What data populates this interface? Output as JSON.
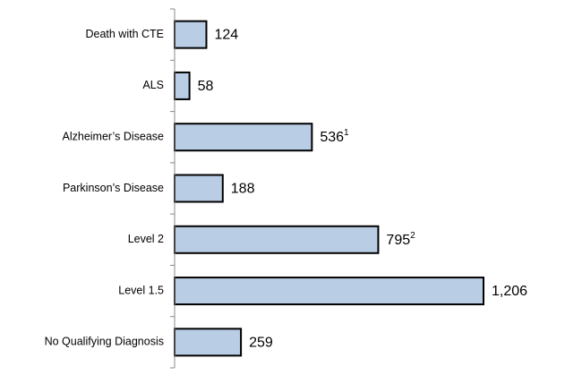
{
  "chart_data": {
    "type": "hbar",
    "categories": [
      "Death with CTE",
      "ALS",
      "Alzheimer’s Disease",
      "Parkinson’s Disease",
      "Level 2",
      "Level 1.5",
      "No Qualifying Diagnosis"
    ],
    "values": [
      124,
      58,
      536,
      188,
      795,
      1206,
      259
    ],
    "value_labels": [
      "124",
      "58",
      "536",
      "188",
      "795",
      "1,206",
      "259"
    ],
    "value_footnotes": [
      null,
      null,
      "1",
      null,
      "2",
      null,
      null
    ],
    "color": "#b9cde5"
  }
}
